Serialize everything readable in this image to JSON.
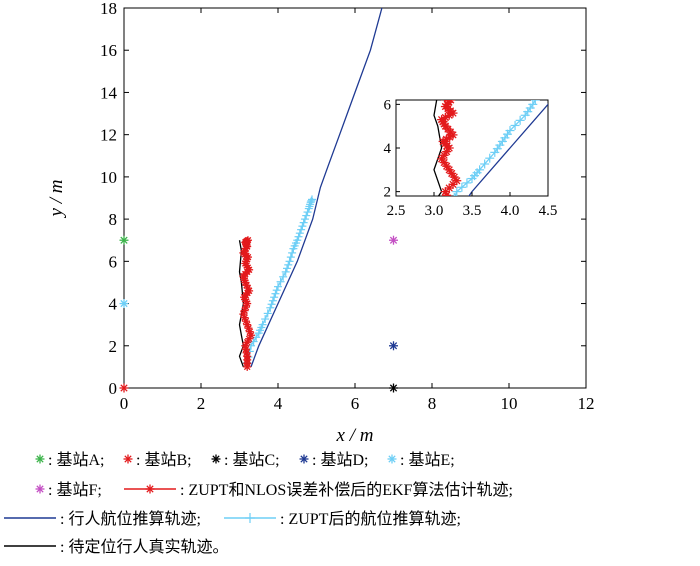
{
  "chart_data": {
    "type": "line",
    "xlabel": "x / m",
    "ylabel": "y / m",
    "xlim": [
      0,
      12
    ],
    "ylim": [
      0,
      18
    ],
    "xticks": [
      "0",
      "2",
      "4",
      "6",
      "8",
      "10",
      "12"
    ],
    "yticks": [
      "0",
      "2",
      "4",
      "6",
      "8",
      "10",
      "12",
      "14",
      "16",
      "18"
    ],
    "grid": false,
    "stations": [
      {
        "name": "基站A",
        "x": 0,
        "y": 7,
        "color": "#3cb44b"
      },
      {
        "name": "基站B",
        "x": 0,
        "y": 0,
        "color": "#e31a1c"
      },
      {
        "name": "基站C",
        "x": 7,
        "y": 0,
        "color": "#000000"
      },
      {
        "name": "基站D",
        "x": 7,
        "y": 2,
        "color": "#1f3a93"
      },
      {
        "name": "基站E",
        "x": 0,
        "y": 4,
        "color": "#6ecff6"
      },
      {
        "name": "基站F",
        "x": 7,
        "y": 7,
        "color": "#c44fc4"
      }
    ],
    "series": [
      {
        "name": "ZUPT和NLOS误差补偿后的EKF算法估计轨迹",
        "color": "#e31a1c",
        "style": "line-star",
        "x": [
          3.2,
          3.2,
          3.15,
          3.3,
          3.2,
          3.1,
          3.2,
          3.12,
          3.25,
          3.15,
          3.1,
          3.25,
          3.15,
          3.22,
          3.1,
          3.2,
          3.15,
          3.22
        ],
        "y": [
          1.0,
          1.5,
          2.0,
          2.5,
          3.0,
          3.5,
          4.0,
          4.3,
          4.6,
          5.0,
          5.3,
          5.6,
          5.9,
          6.2,
          6.4,
          6.7,
          6.9,
          7.0
        ]
      },
      {
        "name": "行人航位推算轨迹",
        "color": "#1f3a93",
        "style": "line",
        "x": [
          3.3,
          3.5,
          4.0,
          4.5,
          4.9,
          5.1,
          5.3,
          5.6,
          6.0,
          6.4,
          6.7
        ],
        "y": [
          1.0,
          2.0,
          4.0,
          6.0,
          8.0,
          9.5,
          10.5,
          12.0,
          14.0,
          16.0,
          18.0
        ]
      },
      {
        "name": "ZUPT后的航位推算轨迹",
        "color": "#6ecff6",
        "style": "line-plus",
        "x": [
          3.2,
          3.3,
          3.5,
          3.6,
          3.8,
          3.9,
          4.0,
          4.2,
          4.3,
          4.4,
          4.5,
          4.6,
          4.7,
          4.8,
          4.85,
          4.9
        ],
        "y": [
          1.2,
          2.0,
          2.6,
          3.0,
          3.8,
          4.3,
          4.8,
          5.5,
          6.0,
          6.6,
          7.0,
          7.5,
          8.0,
          8.5,
          8.8,
          9.0
        ]
      },
      {
        "name": "待定位行人真实轨迹",
        "color": "#000000",
        "style": "line",
        "x": [
          3.1,
          3.0,
          3.1,
          3.05,
          3.0,
          3.1,
          3.05,
          3.0,
          3.05,
          3.0
        ],
        "y": [
          1.0,
          1.5,
          2.0,
          2.5,
          3.0,
          4.0,
          5.0,
          5.5,
          6.5,
          7.0
        ]
      }
    ],
    "inset": {
      "xlim": [
        2.5,
        4.5
      ],
      "ylim": [
        1.8,
        6.2
      ],
      "xticks": [
        "2.5",
        "3.0",
        "3.5",
        "4.0",
        "4.5"
      ],
      "yticks": [
        "2",
        "4",
        "6"
      ]
    },
    "legend": {
      "placement": "bottom",
      "rows": [
        [
          {
            "label": ": 基站A;",
            "marker": "star",
            "color": "#3cb44b"
          },
          {
            "label": ": 基站B;",
            "marker": "star",
            "color": "#e31a1c"
          },
          {
            "label": ": 基站C;",
            "marker": "star",
            "color": "#000000"
          },
          {
            "label": ": 基站D;",
            "marker": "star",
            "color": "#1f3a93"
          },
          {
            "label": ": 基站E;",
            "marker": "star",
            "color": "#6ecff6"
          }
        ],
        [
          {
            "label": ": 基站F;",
            "marker": "star",
            "color": "#c44fc4"
          },
          {
            "label": ": ZUPT和NLOS误差补偿后的EKF算法估计轨迹;",
            "marker": "line-star",
            "color": "#e31a1c"
          }
        ],
        [
          {
            "label": ": 行人航位推算轨迹;",
            "marker": "line",
            "color": "#1f3a93"
          },
          {
            "label": ": ZUPT后的航位推算轨迹;",
            "marker": "line-plus",
            "color": "#6ecff6"
          }
        ],
        [
          {
            "label": ": 待定位行人真实轨迹。",
            "marker": "line",
            "color": "#000000"
          }
        ]
      ]
    }
  }
}
